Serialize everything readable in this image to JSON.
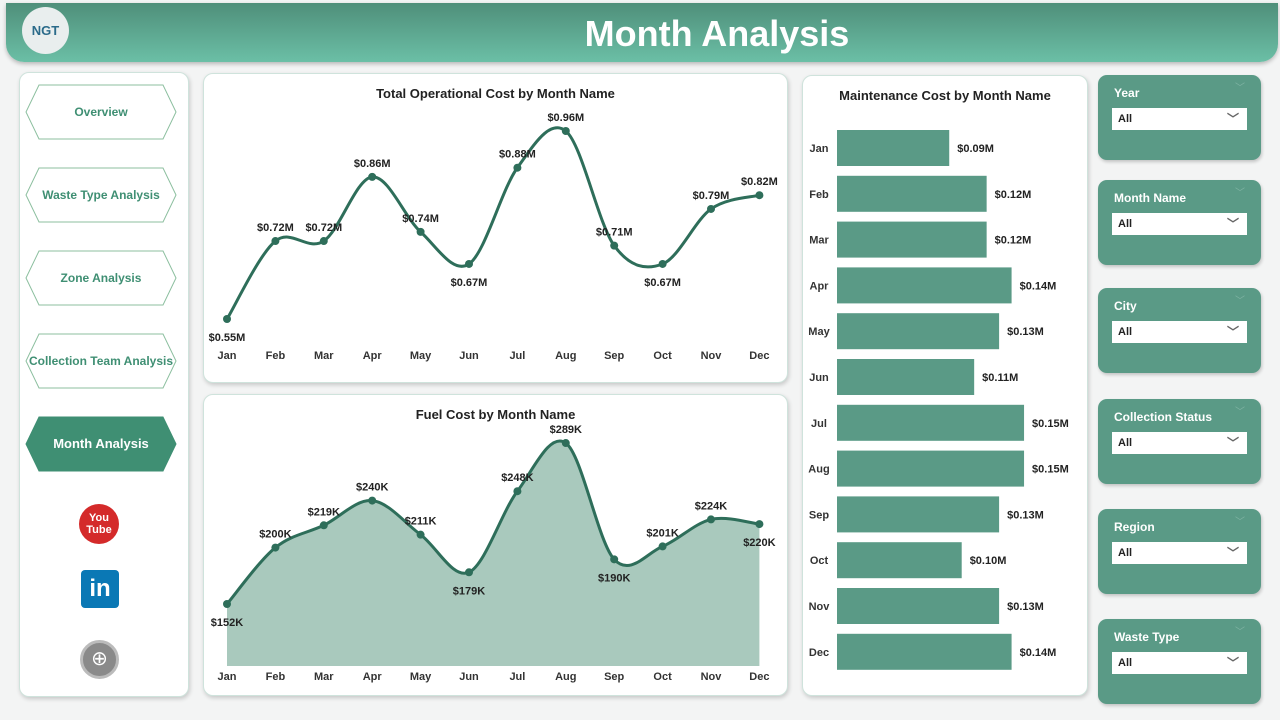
{
  "header": {
    "title": "Month Analysis",
    "logo": "NGT"
  },
  "nav": [
    {
      "label": "Overview"
    },
    {
      "label": "Waste Type Analysis"
    },
    {
      "label": "Zone Analysis"
    },
    {
      "label": "Collection Team Analysis"
    },
    {
      "label": "Month Analysis",
      "active": true
    }
  ],
  "social": [
    "youtube-icon",
    "linkedin-icon",
    "web-icon"
  ],
  "slicers": [
    {
      "label": "Year",
      "value": "All"
    },
    {
      "label": "Month Name",
      "value": "All"
    },
    {
      "label": "City",
      "value": "All"
    },
    {
      "label": "Collection Status",
      "value": "All"
    },
    {
      "label": "Region",
      "value": "All"
    },
    {
      "label": "Waste Type",
      "value": "All"
    }
  ],
  "colors": {
    "accent": "#3f8f73",
    "line": "#2e6e5a",
    "bar": "#5a9a86",
    "area": "#a9c9bd"
  },
  "chart_data": [
    {
      "type": "line",
      "title": "Total Operational Cost by Month Name",
      "categories": [
        "Jan",
        "Feb",
        "Mar",
        "Apr",
        "May",
        "Jun",
        "Jul",
        "Aug",
        "Sep",
        "Oct",
        "Nov",
        "Dec"
      ],
      "values": [
        0.55,
        0.72,
        0.72,
        0.86,
        0.74,
        0.67,
        0.88,
        0.96,
        0.71,
        0.67,
        0.79,
        0.82
      ],
      "labels": [
        "$0.55M",
        "$0.72M",
        "$0.72M",
        "$0.86M",
        "$0.74M",
        "$0.67M",
        "$0.88M",
        "$0.96M",
        "$0.71M",
        "$0.67M",
        "$0.79M",
        "$0.82M"
      ]
    },
    {
      "type": "area",
      "title": "Fuel Cost by Month Name",
      "categories": [
        "Jan",
        "Feb",
        "Mar",
        "Apr",
        "May",
        "Jun",
        "Jul",
        "Aug",
        "Sep",
        "Oct",
        "Nov",
        "Dec"
      ],
      "values": [
        152,
        200,
        219,
        240,
        211,
        179,
        248,
        289,
        190,
        201,
        224,
        220
      ],
      "labels": [
        "$152K",
        "$200K",
        "$219K",
        "$240K",
        "$211K",
        "$179K",
        "$248K",
        "$289K",
        "$190K",
        "$201K",
        "$224K",
        "$220K"
      ]
    },
    {
      "type": "bar",
      "orientation": "horizontal",
      "title": "Maintenance Cost by Month Name",
      "categories": [
        "Jan",
        "Feb",
        "Mar",
        "Apr",
        "May",
        "Jun",
        "Jul",
        "Aug",
        "Sep",
        "Oct",
        "Nov",
        "Dec"
      ],
      "values": [
        0.09,
        0.12,
        0.12,
        0.14,
        0.13,
        0.11,
        0.15,
        0.15,
        0.13,
        0.1,
        0.13,
        0.14
      ],
      "labels": [
        "$0.09M",
        "$0.12M",
        "$0.12M",
        "$0.14M",
        "$0.13M",
        "$0.11M",
        "$0.15M",
        "$0.15M",
        "$0.13M",
        "$0.10M",
        "$0.13M",
        "$0.14M"
      ]
    }
  ]
}
